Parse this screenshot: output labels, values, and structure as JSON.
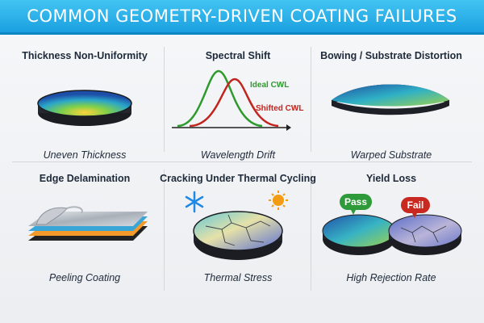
{
  "banner": {
    "title": "COMMON GEOMETRY-DRIVEN COATING FAILURES"
  },
  "panels": [
    {
      "title": "Thickness Non-Uniformity",
      "caption": "Uneven Thickness"
    },
    {
      "title": "Spectral Shift",
      "caption": "Wavelength Drift",
      "labels": {
        "ideal": "Ideal CWL",
        "shifted": "Shifted CWL"
      }
    },
    {
      "title": "Bowing / Substrate Distortion",
      "caption": "Warped Substrate"
    },
    {
      "title": "Edge Delamination",
      "caption": "Peeling Coating"
    },
    {
      "title": "Cracking Under Thermal Cycling",
      "caption": "Thermal Stress"
    },
    {
      "title": "Yield Loss",
      "caption": "High Rejection Rate",
      "labels": {
        "pass": "Pass",
        "fail": "Fail"
      }
    }
  ],
  "colors": {
    "banner": "#1aa0e0",
    "ideal_curve": "#2e9a2e",
    "shifted_curve": "#c0251e",
    "pass_badge": "#2f9a3a",
    "fail_badge": "#c8281f",
    "snowflake": "#1e88e5",
    "sun": "#f39c12"
  },
  "icons": [
    "snowflake-icon",
    "sun-icon"
  ]
}
